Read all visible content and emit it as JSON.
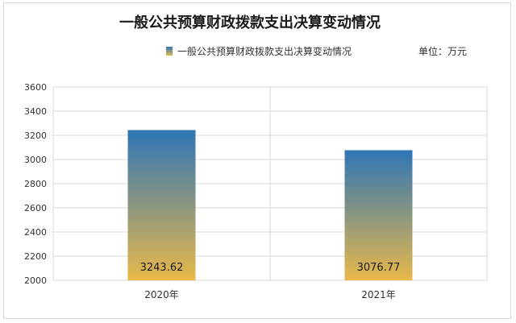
{
  "chart_data": {
    "type": "bar",
    "title": "一般公共预算财政拨款支出决算变动情况",
    "unit_label": "单位：万元",
    "legend": "一般公共预算财政拨款支出决算变动情况",
    "categories": [
      "2020年",
      "2021年"
    ],
    "values": [
      3243.62,
      3076.77
    ],
    "data_labels": [
      "3243.62",
      "3076.77"
    ],
    "ylim": [
      2000,
      3600
    ],
    "yticks": [
      2000,
      2200,
      2400,
      2600,
      2800,
      3000,
      3200,
      3400,
      3600
    ],
    "grid": true,
    "legend_position": "top-center",
    "colors": {
      "bar_top": "#2e75b6",
      "bar_bottom": "#e8b84a",
      "grid": "#d9d9d9",
      "axis_text": "#333333"
    }
  }
}
